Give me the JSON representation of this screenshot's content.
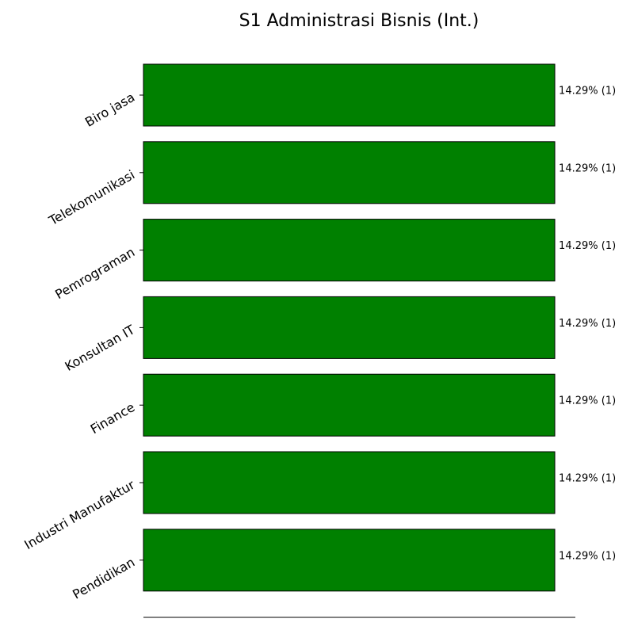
{
  "chart_data": {
    "type": "bar",
    "orientation": "horizontal",
    "title": "S1 Administrasi Bisnis (Int.)",
    "xlabel": "",
    "ylabel": "",
    "categories": [
      "Biro jasa",
      "Telekomunikasi",
      "Pemrograman",
      "Konsultan IT",
      "Finance",
      "Industri Manufaktur",
      "Pendidikan"
    ],
    "values": [
      1,
      1,
      1,
      1,
      1,
      1,
      1
    ],
    "data_labels": [
      "14.29% (1)",
      "14.29% (1)",
      "14.29% (1)",
      "14.29% (1)",
      "14.29% (1)",
      "14.29% (1)",
      "14.29% (1)"
    ],
    "xlim": [
      0,
      1.05
    ],
    "bar_color": "#008000",
    "edge_color": "#000000",
    "grid": false,
    "legend": "none"
  }
}
